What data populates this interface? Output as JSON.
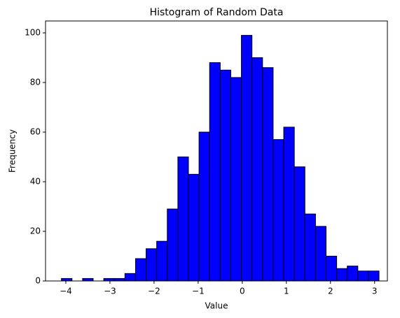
{
  "chart_data": {
    "type": "histogram",
    "title": "Histogram of Random Data",
    "xlabel": "Value",
    "ylabel": "Frequency",
    "bins": [
      -4.1,
      -3.86,
      -3.62,
      -3.38,
      -3.14,
      -2.9,
      -2.66,
      -2.42,
      -2.18,
      -1.94,
      -1.7,
      -1.46,
      -1.22,
      -0.98,
      -0.74,
      -0.5,
      -0.26,
      -0.02,
      0.22,
      0.46,
      0.7,
      0.94,
      1.18,
      1.42,
      1.66,
      1.9,
      2.14,
      2.38,
      2.62,
      2.86,
      3.1
    ],
    "values": [
      1,
      0,
      1,
      0,
      1,
      1,
      3,
      9,
      13,
      16,
      29,
      50,
      43,
      60,
      88,
      85,
      82,
      99,
      90,
      86,
      57,
      62,
      46,
      27,
      22,
      10,
      5,
      6,
      4,
      4
    ],
    "color": "#0000ff",
    "edgecolor": "#000000",
    "xlim": [
      -4.46,
      3.29
    ],
    "ylim": [
      0,
      104.8
    ],
    "xticks": [
      {
        "value": -4,
        "label": "−4"
      },
      {
        "value": -3,
        "label": "−3"
      },
      {
        "value": -2,
        "label": "−2"
      },
      {
        "value": -1,
        "label": "−1"
      },
      0,
      1,
      2,
      3
    ],
    "yticks": [
      0,
      20,
      40,
      60,
      80,
      100
    ]
  }
}
